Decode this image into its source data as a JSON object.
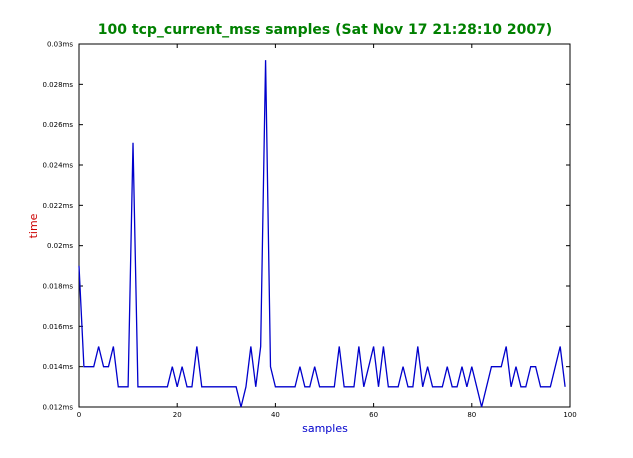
{
  "chart_data": {
    "type": "line",
    "title": "100 tcp_current_mss samples (Sat Nov 17 21:28:10 2007)",
    "xlabel": "samples",
    "ylabel": "time",
    "xlim": [
      0,
      100
    ],
    "ylim": [
      0.012,
      0.03
    ],
    "x_ticks": [
      0,
      20,
      40,
      60,
      80,
      100
    ],
    "x_tick_labels": [
      "0",
      "20",
      "40",
      "60",
      "80",
      "100"
    ],
    "y_ticks": [
      0.012,
      0.014,
      0.016,
      0.018,
      0.02,
      0.022,
      0.024,
      0.026,
      0.028,
      0.03
    ],
    "y_tick_labels": [
      "0.012ms",
      "0.014ms",
      "0.016ms",
      "0.018ms",
      "0.02ms",
      "0.022ms",
      "0.024ms",
      "0.026ms",
      "0.028ms",
      "0.03ms"
    ],
    "grid": false,
    "legend": "none",
    "colors": {
      "line": "#0000cc",
      "title": "#008000",
      "xlabel": "#0000cc",
      "ylabel": "#cc0000"
    },
    "series": [
      {
        "x": [
          0,
          1,
          2,
          3,
          4,
          5,
          6,
          7,
          8,
          9,
          10,
          11,
          12,
          13,
          14,
          15,
          16,
          17,
          18,
          19,
          20,
          21,
          22,
          23,
          24,
          25,
          26,
          27,
          28,
          29,
          30,
          31,
          32,
          33,
          34,
          35,
          36,
          37,
          38,
          39,
          40,
          41,
          42,
          43,
          44,
          45,
          46,
          47,
          48,
          49,
          50,
          51,
          52,
          53,
          54,
          55,
          56,
          57,
          58,
          59,
          60,
          61,
          62,
          63,
          64,
          65,
          66,
          67,
          68,
          69,
          70,
          71,
          72,
          73,
          74,
          75,
          76,
          77,
          78,
          79,
          80,
          81,
          82,
          83,
          84,
          85,
          86,
          87,
          88,
          89,
          90,
          91,
          92,
          93,
          94,
          95,
          96,
          97,
          98,
          99
        ],
        "y": [
          0.019,
          0.014,
          0.014,
          0.014,
          0.015,
          0.014,
          0.014,
          0.015,
          0.013,
          0.013,
          0.013,
          0.0251,
          0.013,
          0.013,
          0.013,
          0.013,
          0.013,
          0.013,
          0.013,
          0.014,
          0.013,
          0.014,
          0.013,
          0.013,
          0.015,
          0.013,
          0.013,
          0.013,
          0.013,
          0.013,
          0.013,
          0.013,
          0.013,
          0.012,
          0.013,
          0.015,
          0.013,
          0.015,
          0.0292,
          0.014,
          0.013,
          0.013,
          0.013,
          0.013,
          0.013,
          0.014,
          0.013,
          0.013,
          0.014,
          0.013,
          0.013,
          0.013,
          0.013,
          0.015,
          0.013,
          0.013,
          0.013,
          0.015,
          0.013,
          0.014,
          0.015,
          0.013,
          0.015,
          0.013,
          0.013,
          0.013,
          0.014,
          0.013,
          0.013,
          0.015,
          0.013,
          0.014,
          0.013,
          0.013,
          0.013,
          0.014,
          0.013,
          0.013,
          0.014,
          0.013,
          0.014,
          0.013,
          0.012,
          0.013,
          0.014,
          0.014,
          0.014,
          0.015,
          0.013,
          0.014,
          0.013,
          0.013,
          0.014,
          0.014,
          0.013,
          0.013,
          0.013,
          0.014,
          0.015,
          0.013
        ]
      }
    ]
  }
}
